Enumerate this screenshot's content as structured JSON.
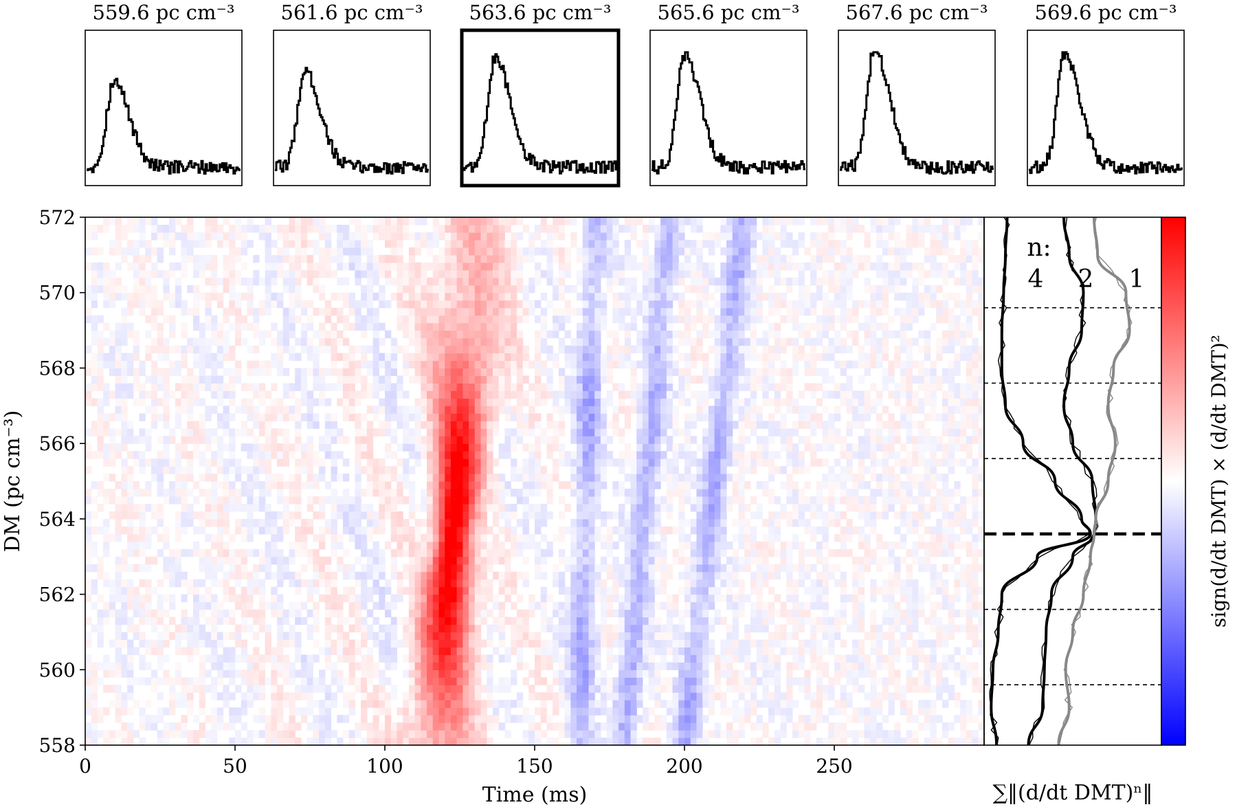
{
  "figure": {
    "colorbar_label": "sign(d/dt DMT) × (d/dt DMT)²",
    "side_xlabel": "∑‖(d/dt DMT)ⁿ‖",
    "curve_prefix": "n:",
    "colors": {
      "positive": "#ff0000",
      "negative": "#0000ff",
      "neutral": "#ffffff",
      "n1": "#888888",
      "n2": "#000000",
      "n4": "#000000"
    }
  },
  "chart_data": [
    {
      "type": "line",
      "role": "profile-panels",
      "x": {
        "label": "Time (ms)",
        "range": [
          0,
          300
        ]
      },
      "panels": [
        {
          "title": "559.6 pc cm⁻³",
          "dm": 559.6,
          "highlight": false,
          "peak_ms": 52,
          "peak": 0.67
        },
        {
          "title": "561.6 pc cm⁻³",
          "dm": 561.6,
          "highlight": false,
          "peak_ms": 57,
          "peak": 0.75
        },
        {
          "title": "563.6 pc cm⁻³",
          "dm": 563.6,
          "highlight": true,
          "peak_ms": 61,
          "peak": 0.85
        },
        {
          "title": "565.6 pc cm⁻³",
          "dm": 565.6,
          "highlight": false,
          "peak_ms": 63,
          "peak": 0.88
        },
        {
          "title": "567.6 pc cm⁻³",
          "dm": 567.6,
          "highlight": false,
          "peak_ms": 66,
          "peak": 0.92
        },
        {
          "title": "569.6 pc cm⁻³",
          "dm": 569.6,
          "highlight": false,
          "peak_ms": 68,
          "peak": 0.9
        }
      ]
    },
    {
      "type": "heatmap",
      "xlabel": "Time (ms)",
      "ylabel": "DM (pc cm⁻³)",
      "xlim": [
        0,
        300
      ],
      "ylim": [
        558,
        572
      ],
      "xticks": [
        0,
        50,
        100,
        150,
        200,
        250
      ],
      "yticks": [
        558,
        560,
        562,
        564,
        566,
        568,
        570,
        572
      ],
      "colormap": "bwr",
      "positive_band": {
        "dm_bottom": 558,
        "t_bottom_ms": 118,
        "dm_top": 572,
        "t_top_ms": 130,
        "peak_dm": 563.6
      },
      "negative_bands": [
        {
          "dm_bottom": 558,
          "t_bottom_ms": 165,
          "dm_top": 572,
          "t_top_ms": 170
        },
        {
          "dm_bottom": 558,
          "t_bottom_ms": 180,
          "dm_top": 572,
          "t_top_ms": 195
        },
        {
          "dm_bottom": 558,
          "t_bottom_ms": 200,
          "dm_top": 572,
          "t_top_ms": 220
        }
      ]
    },
    {
      "type": "line",
      "role": "dm-curves",
      "y": {
        "range": [
          558,
          572
        ],
        "label": "DM (pc cm⁻³)"
      },
      "hlines_dashed": [
        559.6,
        561.6,
        563.6,
        565.6,
        567.6,
        569.6
      ],
      "best_dm": 563.6,
      "series": [
        {
          "name": "4",
          "dm": [
            558,
            559,
            560,
            561,
            562,
            563,
            563.6,
            564,
            565,
            566,
            567,
            568,
            569,
            570,
            571,
            572
          ],
          "value": [
            0.07,
            0.04,
            0.05,
            0.08,
            0.1,
            0.3,
            0.6,
            0.55,
            0.4,
            0.22,
            0.12,
            0.1,
            0.1,
            0.11,
            0.12,
            0.13
          ]
        },
        {
          "name": "2",
          "dm": [
            558,
            559,
            560,
            561,
            562,
            563,
            563.6,
            564,
            565,
            566,
            567,
            568,
            569,
            570,
            571,
            572
          ],
          "value": [
            0.25,
            0.33,
            0.34,
            0.35,
            0.38,
            0.5,
            0.62,
            0.63,
            0.61,
            0.5,
            0.45,
            0.48,
            0.55,
            0.56,
            0.48,
            0.45
          ]
        },
        {
          "name": "1",
          "dm": [
            558,
            559,
            560,
            561,
            562,
            563,
            563.6,
            564,
            565,
            566,
            567,
            568,
            569,
            570,
            571,
            572
          ],
          "value": [
            0.42,
            0.48,
            0.46,
            0.5,
            0.56,
            0.6,
            0.62,
            0.63,
            0.7,
            0.74,
            0.7,
            0.73,
            0.82,
            0.8,
            0.64,
            0.62
          ]
        }
      ]
    },
    {
      "type": "heatmap",
      "role": "colorbar",
      "colors": [
        "#0000ff",
        "#ffffff",
        "#ff0000"
      ]
    }
  ]
}
